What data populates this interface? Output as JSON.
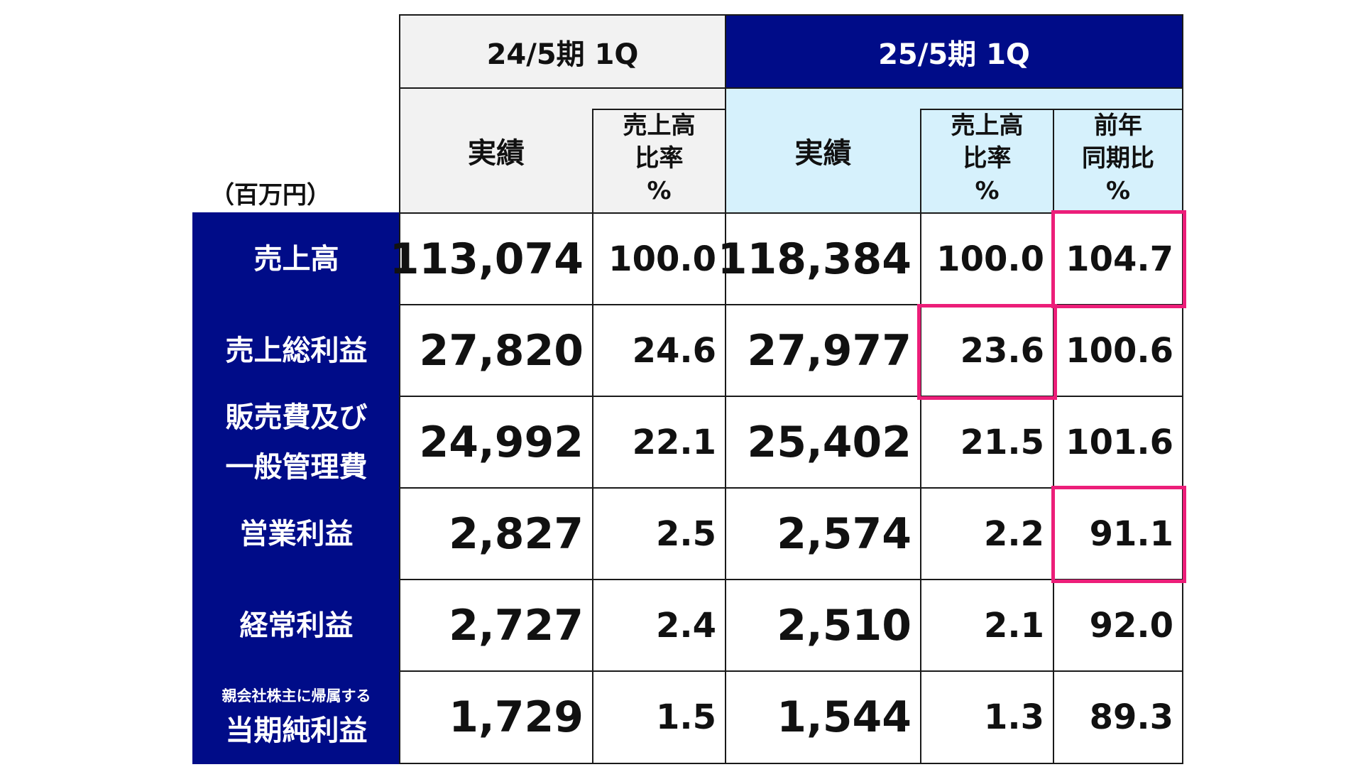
{
  "unit_label": "（百万円）",
  "periods": {
    "prev": "24/5期 1Q",
    "curr": "25/5期 1Q"
  },
  "subheaders": {
    "prev_actual": "実績",
    "prev_ratio": [
      "売上高",
      "比率",
      "%"
    ],
    "curr_actual": "実績",
    "curr_ratio": [
      "売上高",
      "比率",
      "%"
    ],
    "curr_yoy": [
      "前年",
      "同期比",
      "%"
    ]
  },
  "rows": [
    {
      "label": [
        "売上高"
      ],
      "prev_actual": "113,074",
      "prev_ratio": "100.0",
      "curr_actual": "118,384",
      "curr_ratio": "100.0",
      "yoy": "104.7"
    },
    {
      "label": [
        "売上総利益"
      ],
      "prev_actual": "27,820",
      "prev_ratio": "24.6",
      "curr_actual": "27,977",
      "curr_ratio": "23.6",
      "yoy": "100.6"
    },
    {
      "label": [
        "販売費及び",
        "一般管理費"
      ],
      "prev_actual": "24,992",
      "prev_ratio": "22.1",
      "curr_actual": "25,402",
      "curr_ratio": "21.5",
      "yoy": "101.6"
    },
    {
      "label": [
        "営業利益"
      ],
      "prev_actual": "2,827",
      "prev_ratio": "2.5",
      "curr_actual": "2,574",
      "curr_ratio": "2.2",
      "yoy": "91.1"
    },
    {
      "label": [
        "経常利益"
      ],
      "prev_actual": "2,727",
      "prev_ratio": "2.4",
      "curr_actual": "2,510",
      "curr_ratio": "2.1",
      "yoy": "92.0"
    },
    {
      "label_small": "親会社株主に帰属する",
      "label": [
        "当期純利益"
      ],
      "prev_actual": "1,729",
      "prev_ratio": "1.5",
      "curr_actual": "1,544",
      "curr_ratio": "1.3",
      "yoy": "89.3"
    }
  ],
  "colors": {
    "navy": "#000c88",
    "light_blue": "#d6f1fc",
    "light_gray": "#f2f2f2",
    "highlight": "#ec1e79"
  }
}
